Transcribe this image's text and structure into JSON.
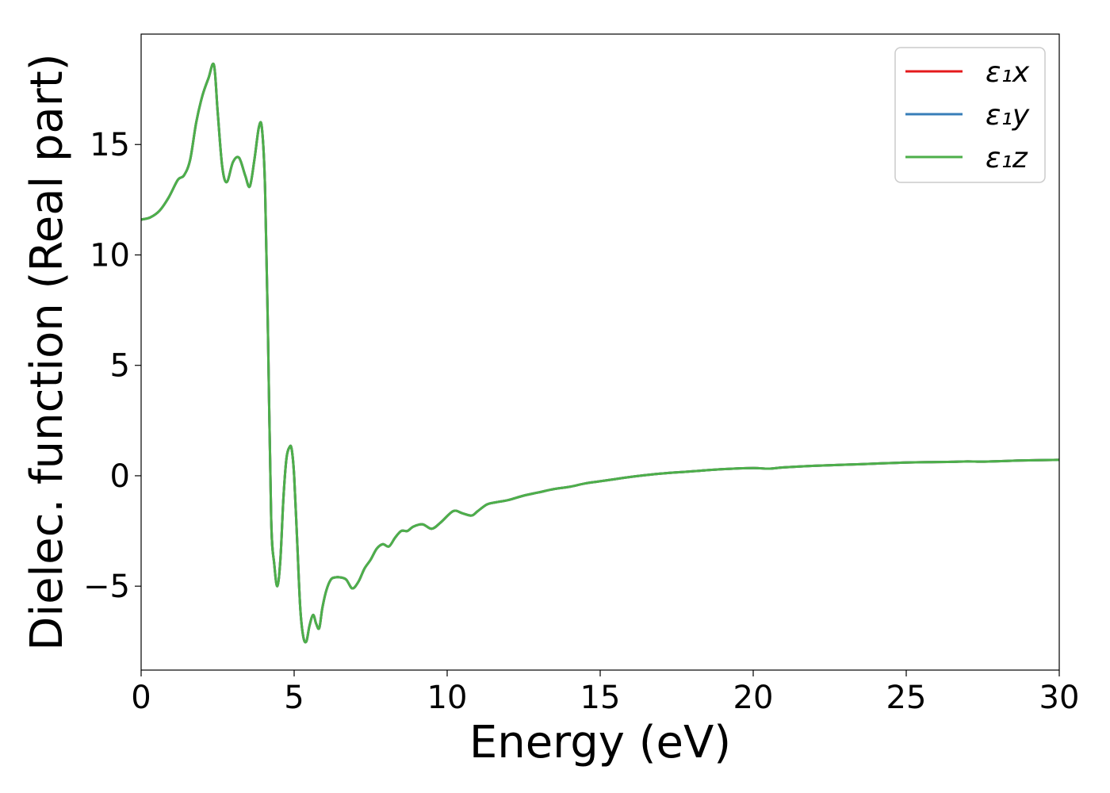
{
  "chart_data": {
    "type": "line",
    "title": "",
    "xlabel": "Energy (eV)",
    "ylabel": "Dielec. function (Real part)",
    "xlim": [
      0,
      30
    ],
    "ylim": [
      -8.8,
      20.0
    ],
    "xticks": [
      0,
      5,
      10,
      15,
      20,
      25,
      30
    ],
    "xtick_labels": [
      "0",
      "5",
      "10",
      "15",
      "20",
      "25",
      "30"
    ],
    "yticks": [
      -5,
      0,
      5,
      10,
      15
    ],
    "ytick_labels": [
      "−5",
      "0",
      "5",
      "10",
      "15"
    ],
    "grid": false,
    "legend_position": "top-right",
    "series": [
      {
        "name": "ε₁x",
        "color": "#e41a1c"
      },
      {
        "name": "ε₁y",
        "color": "#377eb8"
      },
      {
        "name": "ε₁z",
        "color": "#4daf4a"
      }
    ],
    "x": [
      0,
      0.3,
      0.6,
      0.9,
      1.2,
      1.4,
      1.6,
      1.8,
      2.0,
      2.2,
      2.38,
      2.5,
      2.65,
      2.8,
      3.0,
      3.2,
      3.4,
      3.55,
      3.7,
      3.85,
      3.95,
      4.05,
      4.15,
      4.25,
      4.35,
      4.45,
      4.55,
      4.65,
      4.75,
      4.85,
      4.92,
      5.0,
      5.1,
      5.2,
      5.3,
      5.4,
      5.5,
      5.62,
      5.72,
      5.82,
      5.92,
      6.05,
      6.2,
      6.35,
      6.5,
      6.7,
      6.9,
      7.1,
      7.3,
      7.5,
      7.7,
      7.9,
      8.1,
      8.3,
      8.5,
      8.7,
      8.9,
      9.2,
      9.5,
      9.8,
      10.2,
      10.5,
      10.8,
      11.0,
      11.3,
      11.6,
      12.0,
      12.5,
      13.0,
      13.5,
      14.0,
      14.5,
      15.0,
      15.5,
      16.0,
      17.0,
      18.0,
      19.0,
      20.0,
      20.5,
      21.0,
      22.0,
      23.0,
      24.0,
      25.0,
      26.0,
      26.5,
      27.0,
      27.5,
      28.0,
      29.0,
      30.0
    ],
    "y": [
      11.6,
      11.7,
      12.0,
      12.6,
      13.4,
      13.6,
      14.3,
      16.0,
      17.2,
      18.0,
      18.6,
      16.5,
      14.0,
      13.3,
      14.2,
      14.4,
      13.6,
      13.1,
      14.3,
      15.8,
      15.7,
      13.0,
      6.0,
      -2.0,
      -4.0,
      -5.0,
      -3.8,
      -1.0,
      0.8,
      1.3,
      1.2,
      0.0,
      -3.0,
      -6.0,
      -7.3,
      -7.5,
      -6.8,
      -6.3,
      -6.7,
      -6.9,
      -6.0,
      -5.2,
      -4.7,
      -4.6,
      -4.6,
      -4.7,
      -5.1,
      -4.8,
      -4.2,
      -3.8,
      -3.3,
      -3.1,
      -3.2,
      -2.8,
      -2.5,
      -2.5,
      -2.3,
      -2.2,
      -2.4,
      -2.1,
      -1.6,
      -1.7,
      -1.8,
      -1.6,
      -1.3,
      -1.2,
      -1.1,
      -0.9,
      -0.75,
      -0.6,
      -0.5,
      -0.35,
      -0.25,
      -0.15,
      -0.05,
      0.1,
      0.2,
      0.3,
      0.35,
      0.32,
      0.38,
      0.45,
      0.5,
      0.55,
      0.6,
      0.62,
      0.63,
      0.65,
      0.64,
      0.66,
      0.7,
      0.72
    ]
  }
}
